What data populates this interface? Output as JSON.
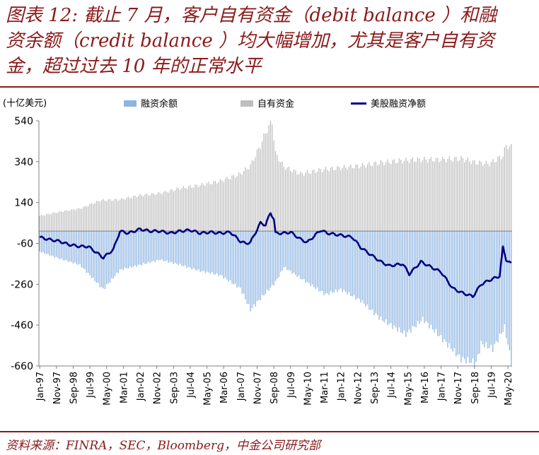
{
  "title": "图表12：截止7月，客户自有资金（debit balance）和融资余额（credit balance）均大幅增加，尤其是客户自有资金，超过过去10年的正常水平",
  "title_lines": [
    "图表 12:  截止 7 月，客户自有资金（debit balance ）和融",
    "资余额（credit balance ）均大幅增加，尤其是客户自有资",
    "金，超过过去 10  年的正常水平"
  ],
  "source": "资料来源：FINRA，SEC，Bloomberg，中金公司研究部",
  "colors": {
    "title": "#8b1a1a",
    "margin_debt": "#8db4e2",
    "free_credit": "#bfbfbf",
    "net": "#000080"
  },
  "chart_data": {
    "type": "bar",
    "unit_label": "(十亿美元)",
    "ylim": [
      -660,
      540
    ],
    "yticks": [
      540,
      340,
      140,
      -60,
      -260,
      -460,
      -660
    ],
    "xtick_labels": [
      "Jan-97",
      "Nov-97",
      "Sep-98",
      "Jul-99",
      "May-00",
      "Mar-01",
      "Jan-02",
      "Nov-02",
      "Sep-03",
      "Jul-04",
      "May-05",
      "Mar-06",
      "Jan-07",
      "Nov-07",
      "Sep-08",
      "Jul-09",
      "May-10",
      "Mar-11",
      "Jan-12",
      "Nov-12",
      "Sep-13",
      "Jul-14",
      "May-15",
      "Mar-16",
      "Jan-17",
      "Nov-17",
      "Sep-18",
      "Jul-19",
      "May-20"
    ],
    "legend": [
      {
        "key": "margin_debt",
        "label": "融资余额",
        "kind": "bar"
      },
      {
        "key": "free_credit",
        "label": "自有资金",
        "kind": "bar"
      },
      {
        "key": "net",
        "label": "美股融资净额",
        "kind": "line"
      }
    ],
    "legend_position": "top",
    "grid": false,
    "x_start": "1997-01",
    "x_end": "2020-07",
    "series": [
      {
        "name": "融资余额",
        "knots": [
          [
            "1997-01",
            -100
          ],
          [
            "1998-01",
            -135
          ],
          [
            "1999-01",
            -165
          ],
          [
            "2000-03",
            -285
          ],
          [
            "2001-01",
            -190
          ],
          [
            "2002-01",
            -165
          ],
          [
            "2003-01",
            -140
          ],
          [
            "2004-01",
            -165
          ],
          [
            "2005-01",
            -195
          ],
          [
            "2006-01",
            -215
          ],
          [
            "2007-01",
            -280
          ],
          [
            "2007-07",
            -385
          ],
          [
            "2008-01",
            -330
          ],
          [
            "2008-10",
            -250
          ],
          [
            "2009-03",
            -175
          ],
          [
            "2010-01",
            -230
          ],
          [
            "2011-04",
            -310
          ],
          [
            "2012-01",
            -285
          ],
          [
            "2013-01",
            -340
          ],
          [
            "2014-01",
            -430
          ],
          [
            "2015-04",
            -505
          ],
          [
            "2016-02",
            -430
          ],
          [
            "2017-01",
            -520
          ],
          [
            "2018-01",
            -625
          ],
          [
            "2018-10",
            -645
          ],
          [
            "2019-01",
            -550
          ],
          [
            "2019-08",
            -575
          ],
          [
            "2020-03",
            -470
          ],
          [
            "2020-07",
            -640
          ]
        ]
      },
      {
        "name": "自有资金",
        "knots": [
          [
            "1997-01",
            75
          ],
          [
            "1998-01",
            95
          ],
          [
            "1999-01",
            110
          ],
          [
            "2000-01",
            150
          ],
          [
            "2001-01",
            155
          ],
          [
            "2002-01",
            175
          ],
          [
            "2003-01",
            185
          ],
          [
            "2004-01",
            210
          ],
          [
            "2005-01",
            225
          ],
          [
            "2006-01",
            245
          ],
          [
            "2007-01",
            280
          ],
          [
            "2007-07",
            320
          ],
          [
            "2008-01",
            420
          ],
          [
            "2008-05",
            500
          ],
          [
            "2008-08",
            535
          ],
          [
            "2008-10",
            380
          ],
          [
            "2009-03",
            315
          ],
          [
            "2010-01",
            280
          ],
          [
            "2011-01",
            300
          ],
          [
            "2012-01",
            310
          ],
          [
            "2013-01",
            320
          ],
          [
            "2014-01",
            335
          ],
          [
            "2015-01",
            345
          ],
          [
            "2016-01",
            350
          ],
          [
            "2017-01",
            350
          ],
          [
            "2018-01",
            355
          ],
          [
            "2018-10",
            335
          ],
          [
            "2019-06",
            330
          ],
          [
            "2020-02",
            370
          ],
          [
            "2020-04",
            420
          ],
          [
            "2020-07",
            410
          ]
        ]
      },
      {
        "name": "美股融资净额",
        "knots": [
          [
            "1997-01",
            -30
          ],
          [
            "1997-06",
            -40
          ],
          [
            "1998-01",
            -50
          ],
          [
            "1998-06",
            -65
          ],
          [
            "1999-01",
            -75
          ],
          [
            "1999-06",
            -75
          ],
          [
            "2000-03",
            -130
          ],
          [
            "2000-09",
            -90
          ],
          [
            "2001-01",
            0
          ],
          [
            "2001-06",
            -10
          ],
          [
            "2002-01",
            10
          ],
          [
            "2002-07",
            0
          ],
          [
            "2003-01",
            0
          ],
          [
            "2003-07",
            -10
          ],
          [
            "2004-01",
            0
          ],
          [
            "2004-07",
            5
          ],
          [
            "2005-01",
            -10
          ],
          [
            "2005-07",
            -5
          ],
          [
            "2006-01",
            -10
          ],
          [
            "2006-07",
            -5
          ],
          [
            "2007-01",
            -50
          ],
          [
            "2007-04",
            -60
          ],
          [
            "2007-07",
            -55
          ],
          [
            "2008-01",
            40
          ],
          [
            "2008-04",
            30
          ],
          [
            "2008-07",
            90
          ],
          [
            "2008-09",
            60
          ],
          [
            "2008-10",
            -10
          ],
          [
            "2009-03",
            -10
          ],
          [
            "2009-07",
            -5
          ],
          [
            "2010-01",
            -40
          ],
          [
            "2010-05",
            -55
          ],
          [
            "2011-01",
            5
          ],
          [
            "2011-05",
            -10
          ],
          [
            "2012-01",
            -20
          ],
          [
            "2012-08",
            -30
          ],
          [
            "2013-01",
            -80
          ],
          [
            "2013-06",
            -110
          ],
          [
            "2014-01",
            -150
          ],
          [
            "2014-06",
            -170
          ],
          [
            "2015-02",
            -160
          ],
          [
            "2015-06",
            -210
          ],
          [
            "2016-01",
            -150
          ],
          [
            "2016-08",
            -180
          ],
          [
            "2017-01",
            -200
          ],
          [
            "2017-08",
            -280
          ],
          [
            "2018-01",
            -300
          ],
          [
            "2018-08",
            -320
          ],
          [
            "2019-01",
            -260
          ],
          [
            "2019-06",
            -240
          ],
          [
            "2019-12",
            -220
          ],
          [
            "2020-02",
            -80
          ],
          [
            "2020-04",
            -140
          ],
          [
            "2020-07",
            -160
          ]
        ]
      }
    ]
  }
}
